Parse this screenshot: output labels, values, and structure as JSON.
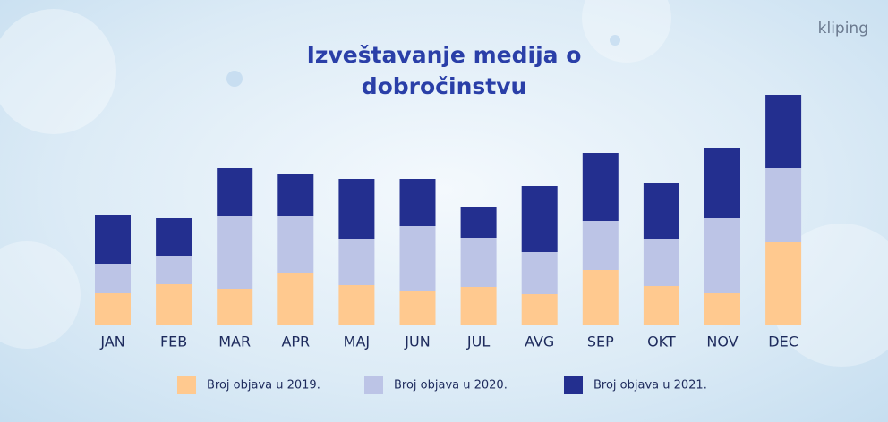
{
  "logo": "kliping",
  "chart_data": {
    "type": "stacked_bar",
    "title": "Izveštavanje medija o dobročinstvu",
    "categories": [
      "JAN",
      "FEB",
      "MAR",
      "APR",
      "MAJ",
      "JUN",
      "JUL",
      "AVG",
      "SEP",
      "OKT",
      "NOV",
      "DEC"
    ],
    "series": [
      {
        "name": "Broj objava u 2019.",
        "color": "#ffc98f",
        "values": [
          36,
          46,
          41,
          59,
          45,
          39,
          43,
          35,
          62,
          44,
          36,
          93
        ]
      },
      {
        "name": "Broj objava u 2020.",
        "color": "#bcc4e6",
        "values": [
          33,
          32,
          81,
          63,
          52,
          72,
          55,
          47,
          55,
          53,
          84,
          83
        ]
      },
      {
        "name": "Broj objava u 2021.",
        "color": "#232f8f",
        "values": [
          55,
          42,
          54,
          47,
          67,
          53,
          35,
          74,
          76,
          62,
          79,
          82
        ]
      }
    ],
    "ylim": [
      0,
      260
    ],
    "legend": "bottom"
  }
}
